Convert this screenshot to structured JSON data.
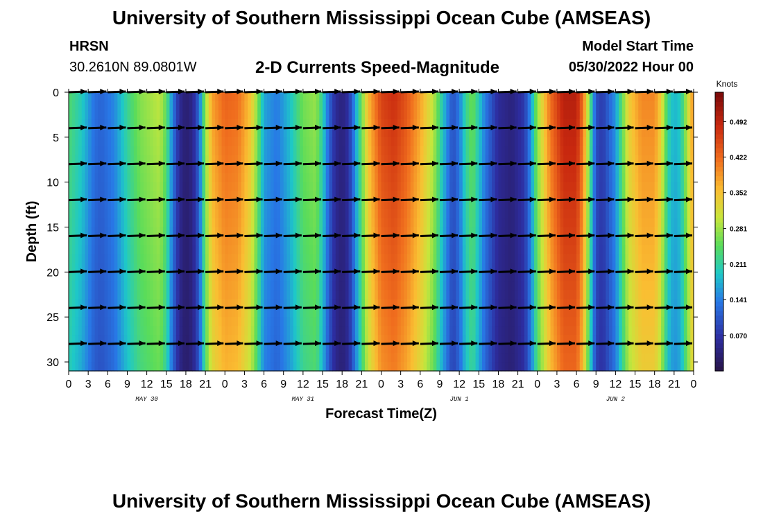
{
  "header": {
    "title": "University of Southern Mississippi Ocean Cube (AMSEAS)",
    "station": "HRSN",
    "coords": "30.2610N  89.0801W",
    "subtitle": "2-D Currents Speed-Magnitude",
    "model_start_label": "Model Start Time",
    "model_start_value": "05/30/2022 Hour 00"
  },
  "footer": {
    "title": "University of Southern Mississippi Ocean Cube (AMSEAS)"
  },
  "chart_data": {
    "type": "heatmap",
    "title": "2-D Currents Speed-Magnitude",
    "xlabel": "Forecast Time(Z)",
    "ylabel": "Depth (ft)",
    "x_range_hours": [
      0,
      96
    ],
    "ylim": [
      0,
      31
    ],
    "x_tick_labels": [
      "0",
      "3",
      "6",
      "9",
      "12",
      "15",
      "18",
      "21",
      "0",
      "3",
      "6",
      "9",
      "12",
      "15",
      "18",
      "21",
      "0",
      "3",
      "6",
      "9",
      "12",
      "15",
      "18",
      "21",
      "0",
      "3",
      "6",
      "9",
      "12",
      "15",
      "18",
      "21",
      "0"
    ],
    "date_labels": [
      {
        "label": "MAY 30",
        "hour": 12
      },
      {
        "label": "MAY 31",
        "hour": 36
      },
      {
        "label": "JUN 1",
        "hour": 60
      },
      {
        "label": "JUN 2",
        "hour": 84
      }
    ],
    "y_ticks": [
      0,
      5,
      10,
      15,
      20,
      25,
      30
    ],
    "y_tick_labels": [
      "0",
      "5",
      "10",
      "15",
      "20",
      "25",
      "30"
    ],
    "colorbar": {
      "title": "Knots",
      "min": 0.0,
      "max": 0.55,
      "ticks": [
        0.07,
        0.141,
        0.211,
        0.281,
        0.352,
        0.422,
        0.492
      ],
      "tick_labels": [
        "0.070",
        "0.141",
        "0.211",
        "0.281",
        "0.352",
        "0.422",
        "0.492"
      ]
    },
    "speed_profile_surface": {
      "hours": [
        0,
        2,
        4,
        5,
        7,
        9,
        11,
        13,
        14,
        15,
        16,
        17,
        18,
        19,
        20,
        21,
        22,
        24,
        26,
        28,
        29,
        30,
        32,
        34,
        36,
        38,
        39,
        40,
        41,
        42,
        43,
        44,
        46,
        48,
        50,
        52,
        54,
        56,
        58,
        59,
        60,
        61,
        62,
        63,
        64,
        66,
        68,
        70,
        71,
        72,
        74,
        76,
        78,
        79,
        80,
        81,
        82,
        84,
        86,
        88,
        90,
        91,
        92,
        93,
        94,
        95,
        96
      ],
      "knots": [
        0.24,
        0.2,
        0.13,
        0.12,
        0.15,
        0.22,
        0.27,
        0.29,
        0.3,
        0.25,
        0.14,
        0.06,
        0.03,
        0.05,
        0.12,
        0.28,
        0.38,
        0.43,
        0.42,
        0.35,
        0.27,
        0.17,
        0.14,
        0.19,
        0.26,
        0.28,
        0.21,
        0.12,
        0.06,
        0.04,
        0.07,
        0.16,
        0.36,
        0.46,
        0.48,
        0.44,
        0.38,
        0.3,
        0.16,
        0.1,
        0.14,
        0.22,
        0.26,
        0.2,
        0.14,
        0.06,
        0.04,
        0.08,
        0.16,
        0.28,
        0.42,
        0.5,
        0.5,
        0.42,
        0.26,
        0.1,
        0.08,
        0.16,
        0.34,
        0.4,
        0.4,
        0.34,
        0.22,
        0.18,
        0.2,
        0.3,
        0.4
      ]
    },
    "vector_columns_hours": [
      0,
      3,
      6,
      9,
      12,
      15,
      18,
      21,
      24,
      27,
      30,
      33,
      36,
      39,
      42,
      45,
      48,
      51,
      54,
      57,
      60,
      63,
      66,
      69,
      72,
      75,
      78,
      81,
      84,
      87,
      90,
      93,
      96
    ],
    "vector_depths_ft": [
      0,
      4,
      8,
      12,
      16,
      20,
      24,
      28
    ]
  }
}
